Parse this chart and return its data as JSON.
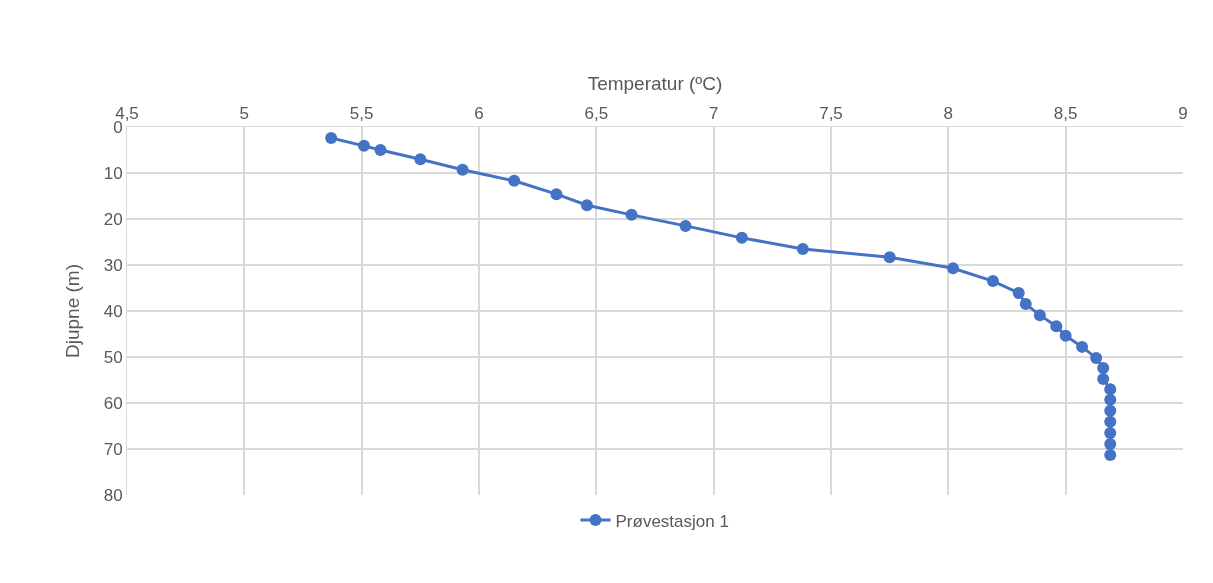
{
  "chart_data": {
    "type": "line",
    "xlabel": "Temperatur (ºC)",
    "ylabel": "Djupne (m)",
    "x": [
      5.37,
      5.51,
      5.58,
      5.75,
      5.93,
      6.15,
      6.33,
      6.46,
      6.65,
      6.88,
      7.12,
      7.38,
      7.75,
      8.02,
      8.19,
      8.3,
      8.33,
      8.39,
      8.46,
      8.5,
      8.57,
      8.63,
      8.66,
      8.66,
      8.69,
      8.69,
      8.69,
      8.69,
      8.69,
      8.69,
      8.69
    ],
    "series": [
      {
        "name": "Prøvestasjon 1",
        "color": "#4472c4",
        "values": [
          2.4,
          4.1,
          5.0,
          7.0,
          9.3,
          11.7,
          14.6,
          17.0,
          19.1,
          21.5,
          24.1,
          26.5,
          28.3,
          30.7,
          33.5,
          36.1,
          38.5,
          40.9,
          43.3,
          45.4,
          47.8,
          50.2,
          52.4,
          54.8,
          57.0,
          59.3,
          61.7,
          64.1,
          66.5,
          68.9,
          71.3
        ]
      }
    ],
    "xlim": [
      4.5,
      9
    ],
    "xticks": [
      {
        "value": 4.5,
        "label": "4,5"
      },
      5,
      {
        "value": 5.5,
        "label": "5,5"
      },
      6,
      {
        "value": 6.5,
        "label": "6,5"
      },
      7,
      {
        "value": 7.5,
        "label": "7,5"
      },
      8,
      {
        "value": 8.5,
        "label": "8,5"
      },
      9
    ],
    "ylim": [
      80,
      0
    ],
    "yticks": [
      0,
      10,
      20,
      30,
      40,
      50,
      60,
      70,
      80
    ],
    "grid": true,
    "legend": "bottom",
    "marker": "circle",
    "line_style": "solid"
  }
}
